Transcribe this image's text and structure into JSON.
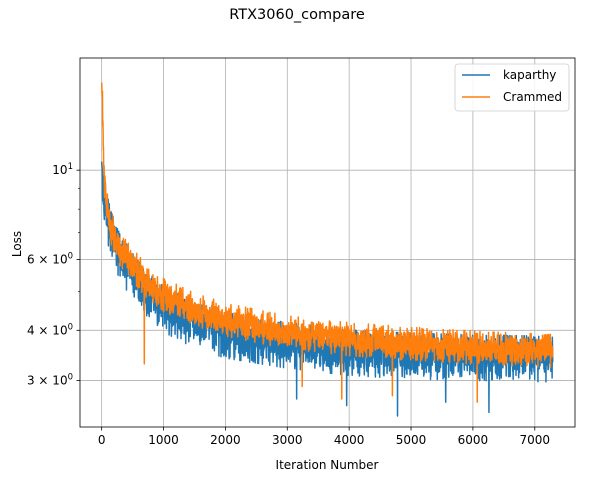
{
  "chart_data": {
    "type": "line",
    "title": "RTX3060_compare",
    "xlabel": "Iteration Number",
    "ylabel": "Loss",
    "xscale": "linear",
    "yscale": "log",
    "xlim": [
      -350,
      7650
    ],
    "ylim": [
      2.3,
      19.0
    ],
    "grid": true,
    "legend_position": "top-right",
    "x_ticks": [
      {
        "value": 0,
        "label": "0"
      },
      {
        "value": 1000,
        "label": "1000"
      },
      {
        "value": 2000,
        "label": "2000"
      },
      {
        "value": 3000,
        "label": "3000"
      },
      {
        "value": 4000,
        "label": "4000"
      },
      {
        "value": 5000,
        "label": "5000"
      },
      {
        "value": 6000,
        "label": "6000"
      },
      {
        "value": 7000,
        "label": "7000"
      }
    ],
    "y_major_ticks": [
      {
        "value": 10,
        "base": "10",
        "exp": "1",
        "mult": ""
      },
      {
        "value": 6,
        "base": "10",
        "exp": "0",
        "mult": "6 × "
      },
      {
        "value": 4,
        "base": "10",
        "exp": "0",
        "mult": "4 × "
      },
      {
        "value": 3,
        "base": "10",
        "exp": "0",
        "mult": "3 × "
      }
    ],
    "y_minor_ticks": [
      5,
      7,
      8,
      9
    ],
    "series": [
      {
        "name": "kaparthy",
        "color": "#1f77b4",
        "x_start": 0,
        "x_end": 7290,
        "noise_sigma": 0.1,
        "noise_min": 0.87,
        "noise_max": 1.13,
        "dips": [
          {
            "x": 4780,
            "y": 2.45
          },
          {
            "x": 6260,
            "y": 2.5
          },
          {
            "x": 3960,
            "y": 2.6
          },
          {
            "x": 3150,
            "y": 2.7
          },
          {
            "x": 5560,
            "y": 2.65
          }
        ],
        "trend": [
          {
            "x": 0,
            "y": 10.5
          },
          {
            "x": 30,
            "y": 9.0
          },
          {
            "x": 80,
            "y": 7.8
          },
          {
            "x": 150,
            "y": 7.0
          },
          {
            "x": 300,
            "y": 6.1
          },
          {
            "x": 500,
            "y": 5.5
          },
          {
            "x": 700,
            "y": 5.0
          },
          {
            "x": 1000,
            "y": 4.55
          },
          {
            "x": 1500,
            "y": 4.15
          },
          {
            "x": 2000,
            "y": 3.92
          },
          {
            "x": 3000,
            "y": 3.7
          },
          {
            "x": 4000,
            "y": 3.55
          },
          {
            "x": 5000,
            "y": 3.48
          },
          {
            "x": 6000,
            "y": 3.45
          },
          {
            "x": 7290,
            "y": 3.42
          }
        ]
      },
      {
        "name": "Crammed",
        "color": "#ff7f0e",
        "x_start": 0,
        "x_end": 7290,
        "noise_sigma": 0.065,
        "noise_min": 0.91,
        "noise_max": 1.1,
        "dips": [
          {
            "x": 690,
            "y": 3.3
          },
          {
            "x": 3880,
            "y": 2.7
          },
          {
            "x": 4700,
            "y": 2.75
          },
          {
            "x": 6070,
            "y": 2.65
          },
          {
            "x": 3240,
            "y": 2.9
          }
        ],
        "trend": [
          {
            "x": 0,
            "y": 16.5
          },
          {
            "x": 15,
            "y": 14.5
          },
          {
            "x": 35,
            "y": 9.6
          },
          {
            "x": 80,
            "y": 8.1
          },
          {
            "x": 150,
            "y": 7.2
          },
          {
            "x": 300,
            "y": 6.35
          },
          {
            "x": 500,
            "y": 5.8
          },
          {
            "x": 700,
            "y": 5.35
          },
          {
            "x": 1000,
            "y": 4.9
          },
          {
            "x": 1500,
            "y": 4.5
          },
          {
            "x": 2000,
            "y": 4.25
          },
          {
            "x": 3000,
            "y": 3.95
          },
          {
            "x": 4000,
            "y": 3.8
          },
          {
            "x": 5000,
            "y": 3.7
          },
          {
            "x": 6000,
            "y": 3.62
          },
          {
            "x": 7290,
            "y": 3.55
          }
        ]
      }
    ]
  }
}
